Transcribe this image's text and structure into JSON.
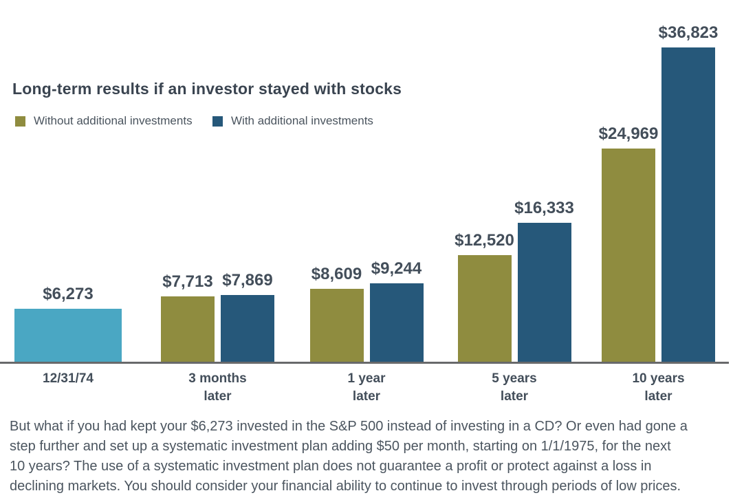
{
  "title": "Long-term results if an investor stayed with stocks",
  "legend": [
    {
      "label": "Without additional investments",
      "color": "#8f8c3f"
    },
    {
      "label": "With additional investments",
      "color": "#26587a"
    }
  ],
  "chart_data": {
    "type": "bar",
    "title": "Long-term results if an investor stayed with stocks",
    "categories": [
      "12/31/74",
      "3 months\nlater",
      "1 year\nlater",
      "5 years\nlater",
      "10 years\nlater"
    ],
    "initial_investment": {
      "category": "12/31/74",
      "value": 6273,
      "label": "$6,273",
      "color": "#4aa7c3"
    },
    "series": [
      {
        "name": "Without additional investments",
        "color": "#8f8c3f",
        "values": [
          null,
          7713,
          8609,
          12520,
          24969
        ],
        "labels": [
          null,
          "$7,713",
          "$8,609",
          "$12,520",
          "$24,969"
        ]
      },
      {
        "name": "With additional investments",
        "color": "#26587a",
        "values": [
          null,
          7869,
          9244,
          16333,
          36823
        ],
        "labels": [
          null,
          "$7,869",
          "$9,244",
          "$16,333",
          "$36,823"
        ]
      }
    ],
    "ylim": [
      0,
      36823
    ],
    "gridlines": false,
    "y_axis_shown": false,
    "axis_color": "#68696b",
    "legend_position": "top-left",
    "value_labels_position": "above-bars"
  },
  "footnote": {
    "lines": [
      "But what if you had kept your $6,273 invested in the S&P 500 instead of investing in a CD? Or even had gone a",
      "step further and set up a systematic investment plan adding $50 per month, starting on 1/1/1975, for the next",
      "10 years? The use of a systematic investment plan does not guarantee a profit or protect against a loss in",
      "declining markets. You should consider your financial ability to continue to invest through periods of low prices."
    ]
  }
}
